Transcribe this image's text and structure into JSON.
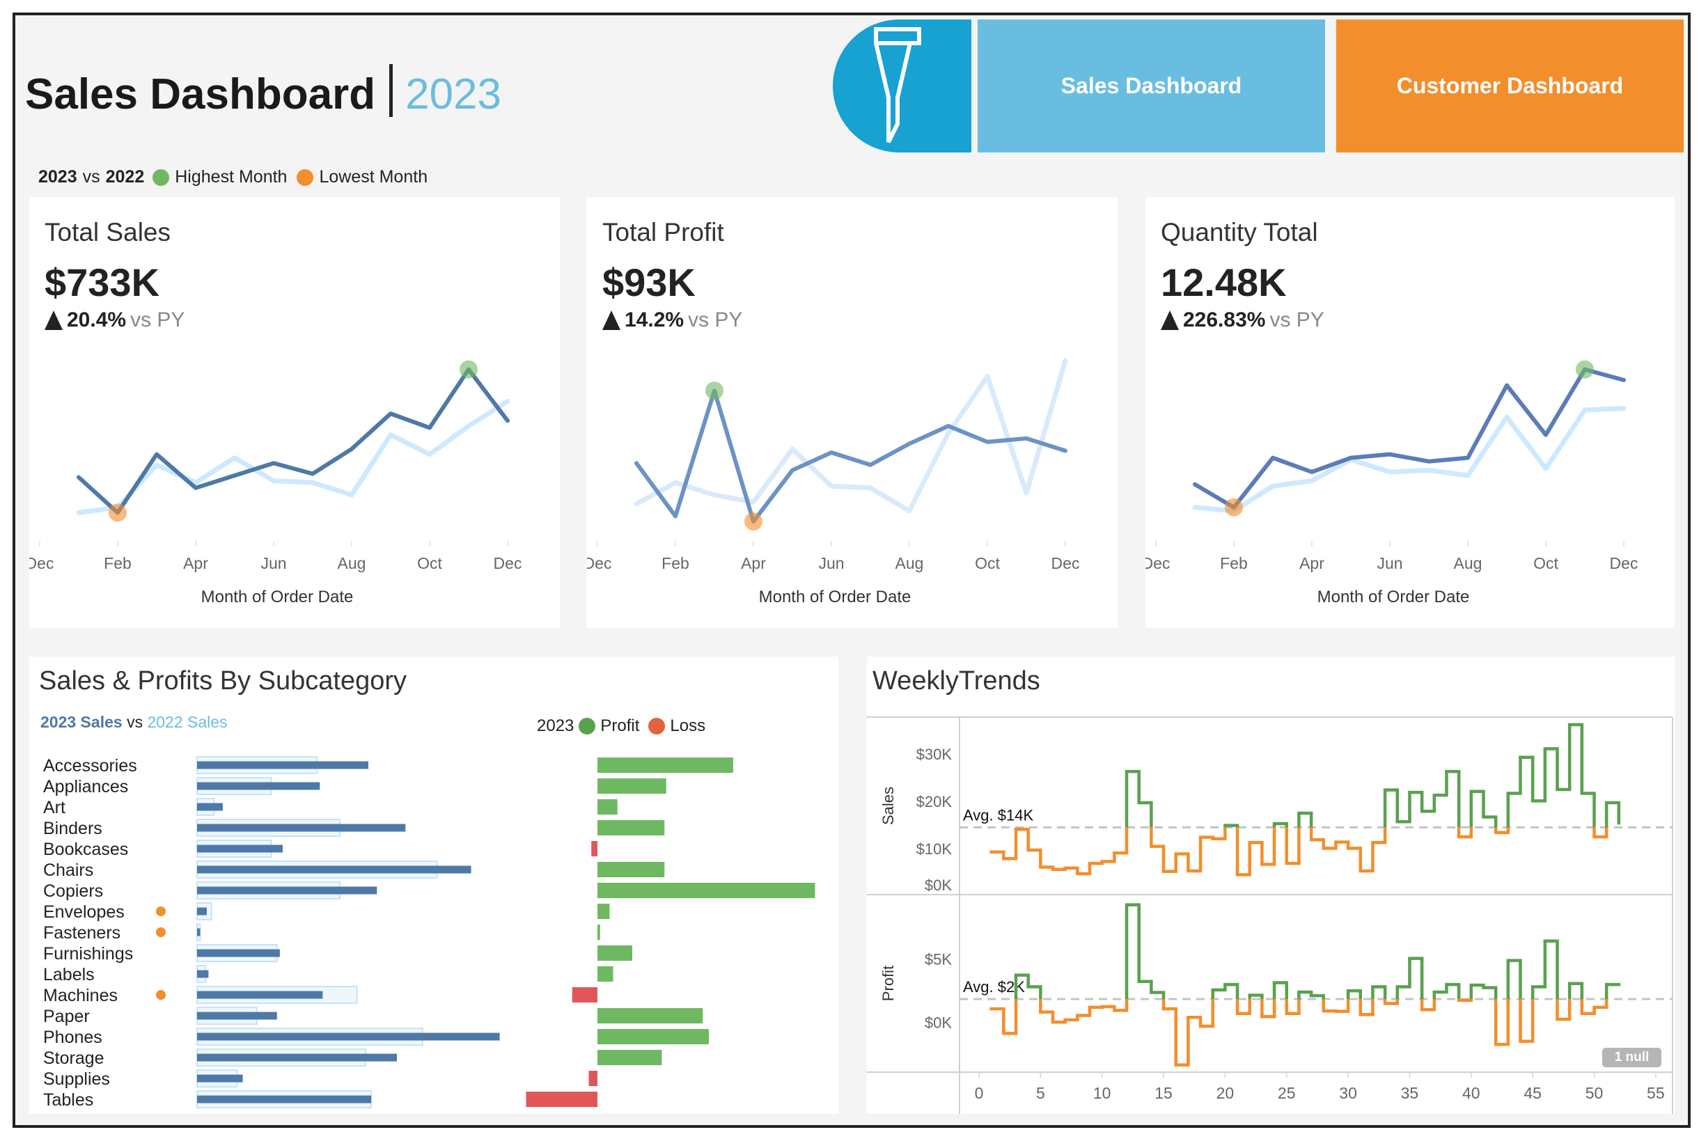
{
  "header": {
    "title": "Sales Dashboard",
    "year": "2023",
    "filter_icon": "filter-icon",
    "nav": [
      {
        "label": "Sales Dashboard",
        "color": "#69bde0"
      },
      {
        "label": "Customer Dashboard",
        "color": "#f28e2c"
      }
    ]
  },
  "legend": {
    "current": "2023",
    "vs": "vs",
    "prior": "2022",
    "highest": "Highest Month",
    "lowest": "Lowest Month"
  },
  "colors": {
    "current_line": "#4e79a7",
    "prior_line": "#cde9ff",
    "highest": "#6fb862",
    "lowest": "#f28e2c",
    "profit": "#6fb862",
    "loss": "#e15759",
    "filter": "#17a2d2"
  },
  "kpis": [
    {
      "title": "Total Sales",
      "value": "$733K",
      "delta": "20.4%",
      "vs": "vs PY",
      "delta_icon": "triangle-up-icon"
    },
    {
      "title": "Total Profit",
      "value": "$93K",
      "delta": "14.2%",
      "vs": "vs PY",
      "delta_icon": "triangle-up-icon"
    },
    {
      "title": "Quantity Total",
      "value": "12.48K",
      "delta": "226.83%",
      "vs": "vs PY",
      "delta_icon": "triangle-up-icon"
    }
  ],
  "subcategory": {
    "title": "Sales & Profits By Subcategory",
    "legend_sales_2023": "2023 Sales",
    "legend_vs": "vs",
    "legend_sales_2022": "2022 Sales",
    "legend_profit_year": "2023",
    "legend_profit": "Profit",
    "legend_loss": "Loss"
  },
  "weekly": {
    "title": "WeeklyTrends",
    "null_badge": "1 null"
  },
  "chart_data": [
    {
      "id": "kpi-sales",
      "type": "line",
      "xlabel": "Month of Order Date",
      "x_ticks": [
        "Dec",
        "Feb",
        "Apr",
        "Jun",
        "Aug",
        "Oct",
        "Dec"
      ],
      "months": [
        "Jan",
        "Feb",
        "Mar",
        "Apr",
        "May",
        "Jun",
        "Jul",
        "Aug",
        "Sep",
        "Oct",
        "Nov",
        "Dec"
      ],
      "unit": "relative",
      "series": [
        {
          "name": "2023",
          "values": [
            36,
            16,
            49,
            30,
            37,
            44,
            38,
            52,
            72,
            64,
            97,
            68
          ]
        },
        {
          "name": "2022",
          "values": [
            16,
            19,
            43,
            33,
            47,
            34,
            33,
            26,
            60,
            49,
            65,
            79
          ]
        }
      ],
      "highest_month": "Nov",
      "lowest_month": "Feb"
    },
    {
      "id": "kpi-profit",
      "type": "line",
      "xlabel": "Month of Order Date",
      "x_ticks": [
        "Dec",
        "Feb",
        "Apr",
        "Jun",
        "Aug",
        "Oct",
        "Dec"
      ],
      "months": [
        "Jan",
        "Feb",
        "Mar",
        "Apr",
        "May",
        "Jun",
        "Jul",
        "Aug",
        "Sep",
        "Oct",
        "Nov",
        "Dec"
      ],
      "unit": "relative",
      "series": [
        {
          "name": "2023",
          "values": [
            44,
            14,
            85,
            11,
            40,
            50,
            43,
            55,
            65,
            56,
            58,
            51
          ]
        },
        {
          "name": "2022",
          "values": [
            21,
            33,
            26,
            22,
            52,
            31,
            30,
            17,
            61,
            93,
            27,
            102
          ]
        }
      ],
      "highest_month": "Mar",
      "lowest_month": "Apr"
    },
    {
      "id": "kpi-quantity",
      "type": "line",
      "xlabel": "Month of Order Date",
      "x_ticks": [
        "Dec",
        "Feb",
        "Apr",
        "Jun",
        "Aug",
        "Oct",
        "Dec"
      ],
      "months": [
        "Jan",
        "Feb",
        "Mar",
        "Apr",
        "May",
        "Jun",
        "Jul",
        "Aug",
        "Sep",
        "Oct",
        "Nov",
        "Dec"
      ],
      "unit": "relative",
      "series": [
        {
          "name": "2023",
          "values": [
            32,
            19,
            47,
            39,
            47,
            49,
            45,
            47,
            88,
            60,
            97,
            91
          ]
        },
        {
          "name": "2022",
          "values": [
            19,
            17,
            31,
            34,
            46,
            39,
            40,
            37,
            70,
            41,
            74,
            75
          ]
        }
      ],
      "highest_month": "Nov",
      "lowest_month": "Feb"
    },
    {
      "id": "subcategory",
      "type": "bar",
      "unit": "$K",
      "categories": [
        "Accessories",
        "Appliances",
        "Art",
        "Binders",
        "Bookcases",
        "Chairs",
        "Copiers",
        "Envelopes",
        "Fasteners",
        "Furnishings",
        "Labels",
        "Machines",
        "Paper",
        "Phones",
        "Storage",
        "Supplies",
        "Tables"
      ],
      "sales_2023": [
        60,
        43,
        9,
        73,
        30,
        96,
        63,
        3.4,
        1.1,
        29,
        4,
        44,
        28,
        106,
        70,
        16,
        61
      ],
      "sales_2022": [
        42,
        26,
        6,
        50,
        26,
        84,
        50,
        5,
        1.1,
        28,
        3,
        56,
        21,
        79,
        59,
        14,
        61
      ],
      "profit_2023": [
        15.6,
        7.9,
        2.3,
        7.7,
        -0.7,
        7.7,
        25,
        1.4,
        0.3,
        4,
        1.8,
        -2.9,
        12.1,
        12.8,
        7.4,
        -1,
        -8.2
      ],
      "flagged": [
        "Envelopes",
        "Fasteners",
        "Machines"
      ]
    },
    {
      "id": "weekly",
      "type": "line",
      "step": true,
      "x_ticks": [
        0,
        5,
        10,
        15,
        20,
        25,
        30,
        35,
        40,
        45,
        50,
        55
      ],
      "xlim": [
        0,
        55
      ],
      "weeks": [
        1,
        2,
        3,
        4,
        5,
        6,
        7,
        8,
        9,
        10,
        11,
        12,
        13,
        14,
        15,
        16,
        17,
        18,
        19,
        20,
        21,
        22,
        23,
        24,
        25,
        26,
        27,
        28,
        29,
        30,
        31,
        32,
        33,
        34,
        35,
        36,
        37,
        38,
        39,
        40,
        41,
        42,
        43,
        44,
        45,
        46,
        47,
        48,
        49,
        50,
        51,
        52
      ],
      "panes": [
        {
          "ylabel": "Sales",
          "unit": "$K",
          "y_ticks": [
            "$0K",
            "$10K",
            "$20K",
            "$30K"
          ],
          "y_tick_values": [
            0,
            10,
            20,
            30
          ],
          "avg": 14.5,
          "avg_label": "Avg. $14K",
          "values": [
            9.3,
            7.9,
            14.1,
            9.7,
            6.1,
            5.6,
            5.9,
            4.7,
            6.9,
            7.3,
            9.1,
            26.3,
            19.7,
            10.5,
            5.2,
            8.9,
            5.3,
            12.4,
            12.1,
            14.9,
            4.5,
            11.3,
            6.7,
            15.3,
            6.9,
            17.5,
            11.9,
            10.1,
            11.4,
            10.1,
            5.3,
            11.3,
            22.4,
            15.7,
            21.9,
            17.9,
            21.3,
            26.3,
            12.5,
            22.1,
            16.7,
            13.4,
            21.7,
            29.3,
            20.1,
            31.1,
            22.5,
            36.2,
            21.7,
            12.5,
            19.7,
            15.1
          ]
        },
        {
          "ylabel": "Profit",
          "unit": "$K",
          "y_ticks": [
            "$0K",
            "$5K"
          ],
          "y_tick_values": [
            0,
            5
          ],
          "avg": 1.84,
          "avg_label": "Avg. $2K",
          "values": [
            1.07,
            -0.87,
            3.73,
            2.81,
            0.82,
            0.02,
            0.2,
            0.55,
            1.19,
            1.24,
            0.95,
            9.28,
            3.23,
            2.36,
            1.07,
            -3.36,
            0.4,
            -0.3,
            2.56,
            2.99,
            0.7,
            2.14,
            0.45,
            3.13,
            0.7,
            2.39,
            2.11,
            0.9,
            0.87,
            2.49,
            0.62,
            2.81,
            1.49,
            2.81,
            5.05,
            1.0,
            2.39,
            2.99,
            1.74,
            2.94,
            2.74,
            -1.74,
            4.88,
            -1.49,
            2.81,
            6.42,
            0.25,
            3.06,
            0.7,
            1.19,
            2.99,
            null
          ]
        }
      ],
      "above_avg_color": "#59a14f",
      "below_avg_color": "#f28e2c"
    }
  ]
}
